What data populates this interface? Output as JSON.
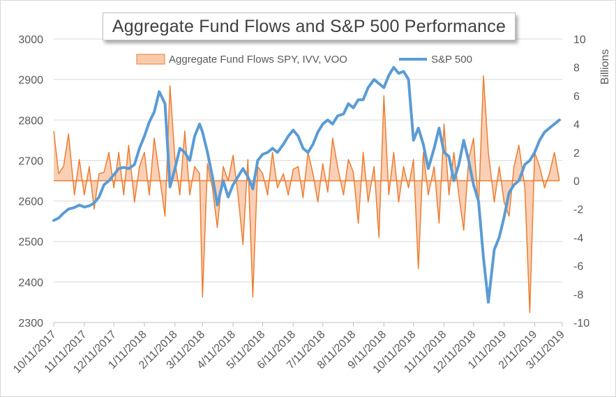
{
  "chart_data": {
    "type": "line",
    "title": "Aggregate Fund Flows and S&P 500 Performance",
    "y2label": "Billions",
    "ylim": [
      2300,
      3000
    ],
    "y2lim": [
      -10,
      10
    ],
    "yticks": [
      "3000",
      "2900",
      "2800",
      "2700",
      "2600",
      "2500",
      "2400",
      "2300"
    ],
    "y2ticks": [
      "10",
      "8",
      "6",
      "4",
      "2",
      "0",
      "-2",
      "-4",
      "-6",
      "-8",
      "-10"
    ],
    "xticks": [
      "10/11/2017",
      "11/11/2017",
      "12/11/2017",
      "1/11/2018",
      "2/11/2018",
      "3/11/2018",
      "4/11/2018",
      "5/11/2018",
      "6/11/2018",
      "7/11/2018",
      "8/11/2018",
      "9/11/2018",
      "10/11/2018",
      "11/11/2018",
      "12/11/2018",
      "1/11/2019",
      "2/11/2019",
      "3/11/2019"
    ],
    "legend_position": "top",
    "grid": "horizontal",
    "series": [
      {
        "name": "Aggregate Fund Flows SPY, IVV, VOO",
        "axis": "right",
        "color": "#ed7d31",
        "fill": "#f8cbad",
        "x": [
          "10/11/2017",
          "10/16/2017",
          "10/21/2017",
          "10/26/2017",
          "11/1/2017",
          "11/6/2017",
          "11/11/2017",
          "11/16/2017",
          "11/21/2017",
          "11/26/2017",
          "12/1/2017",
          "12/6/2017",
          "12/11/2017",
          "12/16/2017",
          "12/21/2017",
          "12/26/2017",
          "1/1/2018",
          "1/6/2018",
          "1/11/2018",
          "1/16/2018",
          "1/21/2018",
          "1/26/2018",
          "2/1/2018",
          "2/6/2018",
          "2/11/2018",
          "2/16/2018",
          "2/21/2018",
          "2/26/2018",
          "3/3/2018",
          "3/8/2018",
          "3/11/2018",
          "3/16/2018",
          "3/21/2018",
          "3/26/2018",
          "4/1/2018",
          "4/6/2018",
          "4/11/2018",
          "4/16/2018",
          "4/21/2018",
          "4/26/2018",
          "5/1/2018",
          "5/6/2018",
          "5/11/2018",
          "5/16/2018",
          "5/21/2018",
          "5/26/2018",
          "6/1/2018",
          "6/6/2018",
          "6/11/2018",
          "6/16/2018",
          "6/21/2018",
          "6/26/2018",
          "7/1/2018",
          "7/6/2018",
          "7/11/2018",
          "7/16/2018",
          "7/21/2018",
          "7/26/2018",
          "8/1/2018",
          "8/6/2018",
          "8/11/2018",
          "8/16/2018",
          "8/21/2018",
          "8/26/2018",
          "9/1/2018",
          "9/6/2018",
          "9/11/2018",
          "9/16/2018",
          "9/21/2018",
          "9/26/2018",
          "10/1/2018",
          "10/6/2018",
          "10/11/2018",
          "10/16/2018",
          "10/21/2018",
          "10/26/2018",
          "11/1/2018",
          "11/6/2018",
          "11/11/2018",
          "11/16/2018",
          "11/21/2018",
          "11/26/2018",
          "12/1/2018",
          "12/6/2018",
          "12/11/2018",
          "12/16/2018",
          "12/21/2018",
          "12/26/2018",
          "1/1/2019",
          "1/6/2019",
          "1/11/2019",
          "1/16/2019",
          "1/21/2019",
          "1/26/2019",
          "2/1/2019",
          "2/6/2019",
          "2/11/2019",
          "2/16/2019",
          "2/21/2019",
          "2/26/2019",
          "3/3/2019",
          "3/8/2019"
        ],
        "values": [
          3.5,
          0.5,
          1.0,
          3.3,
          -1.0,
          1.5,
          -1.0,
          1.0,
          -2.0,
          0.5,
          0.6,
          2.0,
          -0.5,
          2.0,
          -1.0,
          2.5,
          -1.5,
          1.0,
          2.0,
          -1.0,
          3.0,
          0.5,
          -2.5,
          6.7,
          1.5,
          -1.0,
          3.5,
          -1.0,
          1.0,
          0.5,
          -8.2,
          1.2,
          -0.5,
          -3.3,
          1.0,
          0.0,
          1.8,
          -1.0,
          -4.5,
          1.5,
          -8.2,
          1.0,
          0.5,
          -1.0,
          2.0,
          -0.5,
          0.5,
          -1.0,
          0.8,
          1.0,
          -1.2,
          2.0,
          0.5,
          -1.5,
          1.2,
          -0.8,
          3.0,
          1.0,
          -1.0,
          1.5,
          0.6,
          -3.0,
          2.0,
          -1.5,
          1.0,
          -4.0,
          6.0,
          -1.0,
          2.0,
          -1.5,
          1.0,
          -0.5,
          1.5,
          -6.2,
          2.0,
          -1.0,
          1.0,
          -3.0,
          4.0,
          -1.0,
          2.0,
          -1.0,
          -3.5,
          1.5,
          3.0,
          -2.0,
          7.4,
          2.0,
          -1.5,
          1.0,
          -1.5,
          -2.5,
          1.0,
          2.5,
          -0.5,
          -9.3,
          2.0,
          1.0,
          -0.5,
          0.5,
          2.0,
          0.0
        ]
      },
      {
        "name": "S&P 500",
        "axis": "left",
        "color": "#5b9bd5",
        "x": [
          "10/11/2017",
          "10/16/2017",
          "10/21/2017",
          "10/26/2017",
          "11/1/2017",
          "11/6/2017",
          "11/11/2017",
          "11/16/2017",
          "11/21/2017",
          "11/26/2017",
          "12/1/2017",
          "12/6/2017",
          "12/11/2017",
          "12/16/2017",
          "12/21/2017",
          "12/26/2017",
          "1/1/2018",
          "1/6/2018",
          "1/11/2018",
          "1/16/2018",
          "1/21/2018",
          "1/26/2018",
          "2/1/2018",
          "2/6/2018",
          "2/11/2018",
          "2/16/2018",
          "2/21/2018",
          "2/26/2018",
          "3/3/2018",
          "3/8/2018",
          "3/11/2018",
          "3/16/2018",
          "3/21/2018",
          "3/26/2018",
          "4/1/2018",
          "4/6/2018",
          "4/11/2018",
          "4/16/2018",
          "4/21/2018",
          "4/26/2018",
          "5/1/2018",
          "5/6/2018",
          "5/11/2018",
          "5/16/2018",
          "5/21/2018",
          "5/26/2018",
          "6/1/2018",
          "6/6/2018",
          "6/11/2018",
          "6/16/2018",
          "6/21/2018",
          "6/26/2018",
          "7/1/2018",
          "7/6/2018",
          "7/11/2018",
          "7/16/2018",
          "7/21/2018",
          "7/26/2018",
          "8/1/2018",
          "8/6/2018",
          "8/11/2018",
          "8/16/2018",
          "8/21/2018",
          "8/26/2018",
          "9/1/2018",
          "9/6/2018",
          "9/11/2018",
          "9/16/2018",
          "9/21/2018",
          "9/26/2018",
          "10/1/2018",
          "10/6/2018",
          "10/11/2018",
          "10/16/2018",
          "10/21/2018",
          "10/26/2018",
          "11/1/2018",
          "11/6/2018",
          "11/11/2018",
          "11/16/2018",
          "11/21/2018",
          "11/26/2018",
          "12/1/2018",
          "12/6/2018",
          "12/11/2018",
          "12/16/2018",
          "12/21/2018",
          "12/26/2018",
          "1/1/2019",
          "1/6/2019",
          "1/11/2019",
          "1/16/2019",
          "1/21/2019",
          "1/26/2019",
          "2/1/2019",
          "2/6/2019",
          "2/11/2019",
          "2/16/2019",
          "2/21/2019",
          "2/26/2019",
          "3/3/2019",
          "3/8/2019"
        ],
        "values": [
          2552,
          2558,
          2570,
          2580,
          2584,
          2590,
          2585,
          2588,
          2595,
          2610,
          2640,
          2650,
          2665,
          2680,
          2683,
          2680,
          2690,
          2730,
          2760,
          2795,
          2820,
          2870,
          2840,
          2635,
          2680,
          2730,
          2720,
          2700,
          2760,
          2790,
          2770,
          2720,
          2660,
          2590,
          2650,
          2610,
          2640,
          2660,
          2680,
          2660,
          2630,
          2700,
          2715,
          2720,
          2730,
          2720,
          2740,
          2760,
          2775,
          2760,
          2730,
          2720,
          2740,
          2770,
          2790,
          2800,
          2790,
          2810,
          2815,
          2840,
          2830,
          2850,
          2850,
          2880,
          2900,
          2890,
          2880,
          2910,
          2930,
          2915,
          2920,
          2900,
          2750,
          2780,
          2740,
          2680,
          2730,
          2780,
          2720,
          2710,
          2650,
          2690,
          2750,
          2700,
          2640,
          2600,
          2460,
          2350,
          2480,
          2510,
          2560,
          2620,
          2640,
          2650,
          2690,
          2700,
          2720,
          2750,
          2770,
          2780,
          2790,
          2800
        ]
      }
    ]
  }
}
